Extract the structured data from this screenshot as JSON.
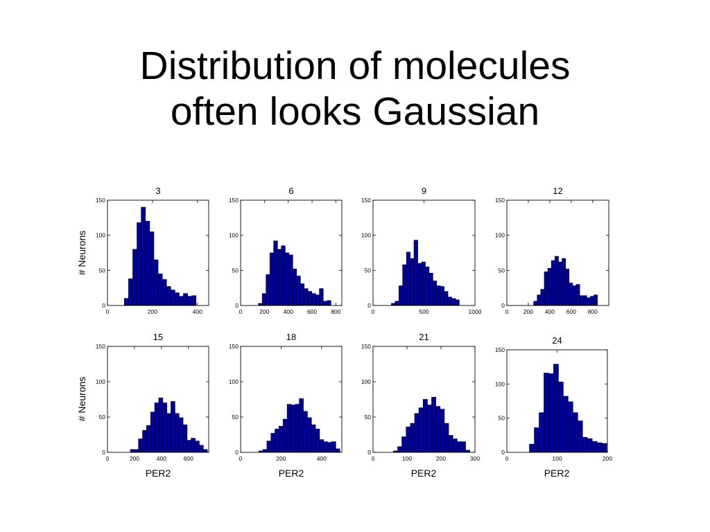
{
  "slide": {
    "title_line1": "Distribution of molecules",
    "title_line2": "often looks Gaussian"
  },
  "colors": {
    "bar_fill": "#00009c",
    "bar_edge": "#000000",
    "axes": "#000000"
  },
  "ylabel": "# Neurons",
  "xlabel": "PER2",
  "chart_data": [
    {
      "type": "bar",
      "title": "3",
      "xlim": [
        0,
        450
      ],
      "ylim": [
        0,
        150
      ],
      "yticks": [
        0,
        50,
        100,
        150
      ],
      "xticks": [
        0,
        200,
        400
      ],
      "bin_start": 75,
      "bin_width": 18.75,
      "values": [
        10,
        38,
        80,
        118,
        140,
        120,
        105,
        65,
        45,
        37,
        27,
        22,
        18,
        13,
        17,
        13,
        14
      ]
    },
    {
      "type": "bar",
      "title": "6",
      "xlim": [
        0,
        850
      ],
      "ylim": [
        0,
        150
      ],
      "yticks": [
        0,
        50,
        100,
        150
      ],
      "xticks": [
        0,
        200,
        400,
        600,
        800
      ],
      "bin_start": 150,
      "bin_width": 32,
      "values": [
        3,
        17,
        44,
        75,
        92,
        80,
        85,
        75,
        72,
        52,
        42,
        31,
        24,
        20,
        17,
        15,
        24,
        6,
        7
      ]
    },
    {
      "type": "bar",
      "title": "9",
      "xlim": [
        0,
        1000
      ],
      "ylim": [
        0,
        150
      ],
      "yticks": [
        0,
        50,
        100,
        150
      ],
      "xticks": [
        0,
        500,
        1000
      ],
      "bin_start": 180,
      "bin_width": 37,
      "values": [
        3,
        6,
        28,
        58,
        76,
        67,
        93,
        60,
        62,
        55,
        46,
        35,
        28,
        27,
        20,
        12,
        10,
        8
      ]
    },
    {
      "type": "bar",
      "title": "12",
      "xlim": [
        0,
        950
      ],
      "ylim": [
        0,
        150
      ],
      "yticks": [
        0,
        50,
        100,
        150
      ],
      "xticks": [
        0,
        200,
        400,
        600,
        800
      ],
      "bin_start": 250,
      "bin_width": 33,
      "values": [
        6,
        15,
        23,
        48,
        53,
        64,
        70,
        62,
        67,
        52,
        32,
        28,
        30,
        14,
        14,
        11,
        13,
        15
      ]
    },
    {
      "type": "bar",
      "title": "15",
      "xlim": [
        0,
        750
      ],
      "ylim": [
        0,
        150
      ],
      "yticks": [
        0,
        50,
        100,
        150
      ],
      "xticks": [
        0,
        200,
        400,
        600
      ],
      "bin_start": 170,
      "bin_width": 30,
      "values": [
        4,
        4,
        19,
        31,
        38,
        57,
        70,
        77,
        70,
        55,
        72,
        55,
        49,
        39,
        17,
        20,
        16,
        10,
        4
      ]
    },
    {
      "type": "bar",
      "title": "18",
      "xlim": [
        0,
        500
      ],
      "ylim": [
        0,
        150
      ],
      "yticks": [
        0,
        50,
        100,
        150
      ],
      "xticks": [
        0,
        200,
        400
      ],
      "bin_start": 90,
      "bin_width": 20,
      "values": [
        2,
        4,
        16,
        27,
        33,
        37,
        47,
        68,
        67,
        68,
        76,
        58,
        49,
        39,
        33,
        18,
        15,
        14,
        15,
        5
      ]
    },
    {
      "type": "bar",
      "title": "21",
      "xlim": [
        0,
        300
      ],
      "ylim": [
        0,
        150
      ],
      "yticks": [
        0,
        50,
        100,
        150
      ],
      "xticks": [
        0,
        100,
        200,
        300
      ],
      "bin_start": 60,
      "bin_width": 12.5,
      "values": [
        2,
        8,
        22,
        36,
        41,
        55,
        63,
        75,
        67,
        78,
        65,
        61,
        41,
        24,
        19,
        15,
        15,
        3
      ]
    },
    {
      "type": "bar",
      "title": "24",
      "xlim": [
        0,
        200
      ],
      "ylim": [
        0,
        150
      ],
      "yticks": [
        0,
        50,
        100,
        150
      ],
      "xticks": [
        0,
        100,
        200
      ],
      "bin_start": 45,
      "bin_width": 9.6,
      "values": [
        12,
        36,
        58,
        116,
        115,
        129,
        103,
        82,
        74,
        58,
        46,
        22,
        20,
        16,
        14,
        13
      ]
    }
  ]
}
